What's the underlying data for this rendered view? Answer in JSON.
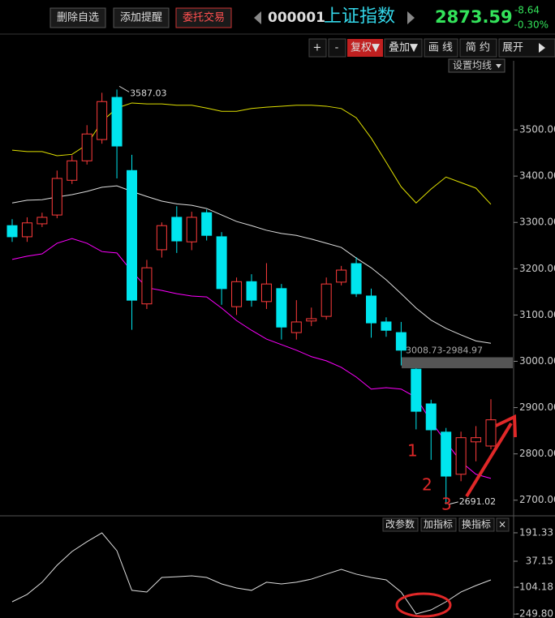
{
  "header": {
    "buttons": [
      "删除自选",
      "添加提醒",
      "委托交易"
    ],
    "code": "000001",
    "name": "上证指数",
    "price": "2873.59",
    "change": "-8.64",
    "change_pct": "-0.30%"
  },
  "toolbar": [
    "+",
    "-",
    "复权▼",
    "叠加▼",
    "画 线",
    "简 约",
    "展开"
  ],
  "ma_button": "设置均线",
  "indicator_buttons": [
    "改参数",
    "加指标",
    "换指标",
    "×"
  ],
  "markers": [
    "1",
    "2",
    "3"
  ],
  "chart_data": [
    {
      "type": "candlestick",
      "open": [
        3293,
        3269,
        3297,
        3316,
        3391,
        3433,
        3479,
        3570,
        3412,
        3124,
        3241,
        3311,
        3258,
        3321,
        3269,
        3118,
        3172,
        3129,
        3157,
        3062,
        3087,
        3097,
        3171,
        3211,
        3141,
        3085,
        3062,
        2983,
        2908,
        2847,
        2756,
        2826,
        2817
      ],
      "high": [
        3307,
        3311,
        3321,
        3412,
        3445,
        3510,
        3580,
        3587.03,
        3446,
        3219,
        3300,
        3335,
        3323,
        3328,
        3279,
        3181,
        3188,
        3212,
        3167,
        3132,
        3116,
        3181,
        3206,
        3225,
        3157,
        3095,
        3085,
        2985,
        2917,
        2856,
        2848,
        2860,
        2918
      ],
      "low": [
        3258,
        3258,
        3290,
        3309,
        3383,
        3425,
        3470,
        3395,
        3068,
        3113,
        3224,
        3234,
        3240,
        3261,
        3122,
        3100,
        3118,
        3113,
        3047,
        3047,
        3076,
        3090,
        3164,
        3139,
        3051,
        3053,
        2991,
        2853,
        2787,
        2691.02,
        2741,
        2784,
        2810
      ],
      "close": [
        3269,
        3299,
        3311,
        3395,
        3433,
        3491,
        3561,
        3465,
        3132,
        3202,
        3293,
        3260,
        3311,
        3272,
        3157,
        3172,
        3132,
        3167,
        3074,
        3085,
        3092,
        3167,
        3197,
        3146,
        3083,
        3067,
        3024,
        2892,
        2852,
        2752,
        2835,
        2835,
        2873.59
      ],
      "up_color": "#ff3c3c",
      "down_color": "#00e5ee",
      "lines": [
        {
          "color": "#e0e000",
          "values": [
            3456,
            3453,
            3453,
            3444,
            3447,
            3468,
            3518,
            3547,
            3558,
            3556,
            3556,
            3553,
            3553,
            3547,
            3540,
            3540,
            3546,
            3549,
            3551,
            3553,
            3553,
            3551,
            3546,
            3526,
            3482,
            3430,
            3377,
            3342,
            3372,
            3398,
            3386,
            3374,
            3339
          ]
        },
        {
          "color": "#dddddd",
          "values": [
            3342,
            3348,
            3349,
            3355,
            3360,
            3367,
            3376,
            3379,
            3367,
            3356,
            3346,
            3340,
            3337,
            3330,
            3316,
            3302,
            3293,
            3283,
            3276,
            3272,
            3264,
            3255,
            3246,
            3223,
            3202,
            3176,
            3146,
            3115,
            3089,
            3071,
            3057,
            3044,
            3039
          ]
        },
        {
          "color": "#ff00ff",
          "values": [
            3220,
            3227,
            3232,
            3255,
            3265,
            3255,
            3237,
            3234,
            3194,
            3159,
            3153,
            3146,
            3141,
            3139,
            3115,
            3088,
            3067,
            3048,
            3036,
            3024,
            3010,
            3001,
            2987,
            2966,
            2940,
            2943,
            2940,
            2922,
            2870,
            2826,
            2783,
            2756,
            2747
          ]
        }
      ],
      "high_label": "3587.03",
      "low_label": "2691.02",
      "gap": {
        "label": "3008.73-2984.97",
        "top": 3008.73,
        "bottom": 2984.97
      },
      "ylim": [
        2668,
        3649
      ],
      "yticks": [
        {
          "value": 2700,
          "label": "2700.00"
        },
        {
          "value": 2800,
          "label": "2800.00"
        },
        {
          "value": 2900,
          "label": "2900.00"
        },
        {
          "value": 3000,
          "label": "3000.00"
        },
        {
          "value": 3100,
          "label": "3100.00"
        },
        {
          "value": 3200,
          "label": "3200.00"
        },
        {
          "value": 3300,
          "label": "3300.00"
        },
        {
          "value": 3400,
          "label": "3400.00"
        },
        {
          "value": 3500,
          "label": "3500.00"
        }
      ]
    },
    {
      "type": "line",
      "color": "#dddddd",
      "values": [
        -183,
        -143,
        -77,
        15,
        90,
        143,
        191,
        94,
        -121,
        -130,
        -51,
        -47,
        -42,
        -51,
        -86,
        -108,
        -121,
        -77,
        -86,
        -77,
        -60,
        -33,
        -7,
        -33,
        -51,
        -64,
        -130,
        -249,
        -227,
        -183,
        -130,
        -95,
        -64
      ],
      "ylim": [
        -271,
        266
      ],
      "yticks": [
        191.33,
        37.15,
        -104.18,
        {
          "value": -249.8,
          "label": "-249.80"
        }
      ]
    }
  ]
}
